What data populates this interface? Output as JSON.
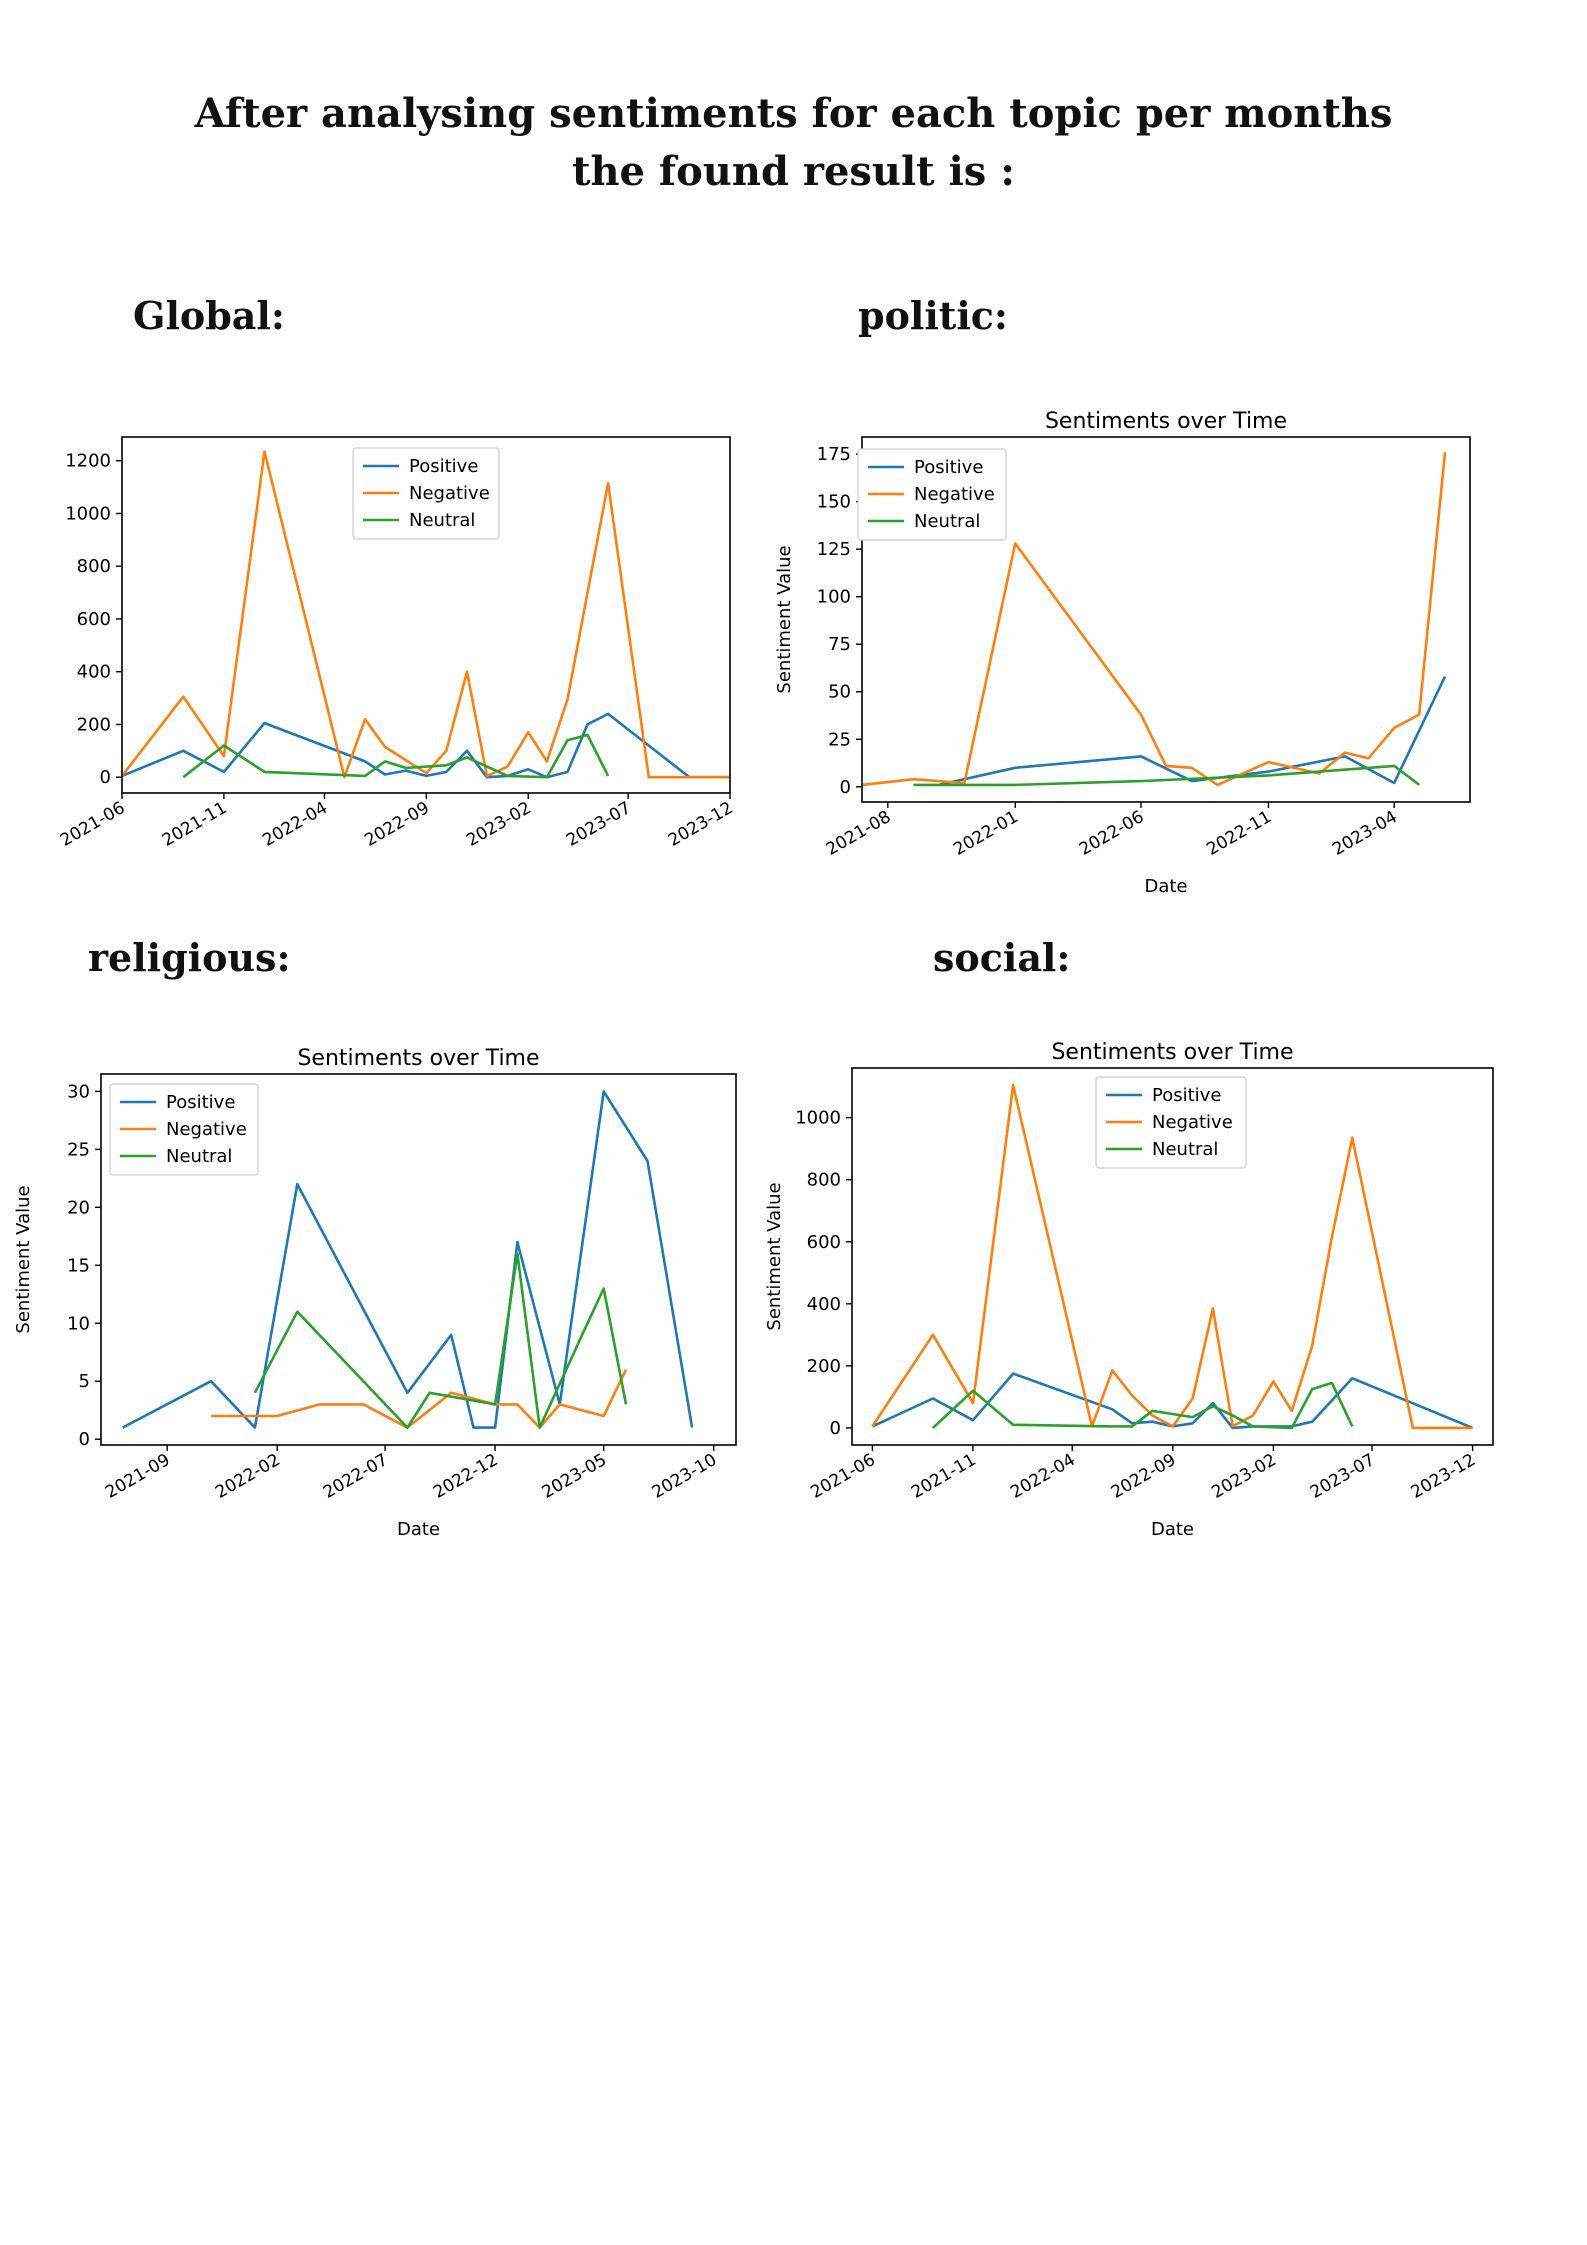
{
  "page": {
    "title_line1": "After analysing sentiments for each topic per months",
    "title_line2": "the found result is :"
  },
  "sections": {
    "global": "Global:",
    "politic": "politic:",
    "religious": "religious:",
    "social": "social:"
  },
  "colors": {
    "positive": "#1f77b4",
    "negative": "#ff7f0e",
    "neutral": "#2ca02c"
  },
  "chart_data": [
    {
      "type": "line",
      "id": "global",
      "title": "",
      "xlabel": "",
      "ylabel": "",
      "x_ticks": [
        "2021-06",
        "2021-11",
        "2022-04",
        "2022-09",
        "2023-02",
        "2023-07",
        "2023-12"
      ],
      "xlim": [
        "2021-06-01",
        "2023-12-01"
      ],
      "y_ticks": [
        0,
        200,
        400,
        600,
        800,
        1000,
        1200
      ],
      "ylim": [
        -60,
        1290
      ],
      "legend": "top-center",
      "series": [
        {
          "name": "Positive",
          "x": [
            "2021-06-01",
            "2021-09-01",
            "2021-11-01",
            "2022-01-01",
            "2022-06-01",
            "2022-07-01",
            "2022-08-01",
            "2022-09-01",
            "2022-10-01",
            "2022-11-01",
            "2022-12-01",
            "2023-01-01",
            "2023-02-01",
            "2023-03-01",
            "2023-04-01",
            "2023-05-01",
            "2023-06-01",
            "2023-10-01",
            "2023-12-01"
          ],
          "y": [
            5,
            100,
            20,
            205,
            60,
            10,
            25,
            5,
            20,
            100,
            0,
            5,
            30,
            0,
            20,
            200,
            240,
            0,
            0
          ]
        },
        {
          "name": "Negative",
          "x": [
            "2021-06-01",
            "2021-09-01",
            "2021-11-01",
            "2022-01-01",
            "2022-05-01",
            "2022-06-01",
            "2022-07-01",
            "2022-09-01",
            "2022-10-01",
            "2022-11-01",
            "2022-12-01",
            "2023-01-01",
            "2023-02-01",
            "2023-03-01",
            "2023-04-01",
            "2023-06-01",
            "2023-08-01",
            "2023-12-01"
          ],
          "y": [
            5,
            305,
            80,
            1235,
            0,
            220,
            115,
            15,
            100,
            400,
            5,
            40,
            170,
            60,
            295,
            1115,
            0,
            0
          ]
        },
        {
          "name": "Neutral",
          "x": [
            "2021-09-01",
            "2021-11-01",
            "2022-01-01",
            "2022-06-01",
            "2022-07-01",
            "2022-08-01",
            "2022-10-01",
            "2022-11-01",
            "2022-12-01",
            "2023-01-01",
            "2023-03-01",
            "2023-04-01",
            "2023-05-01",
            "2023-06-01"
          ],
          "y": [
            0,
            120,
            20,
            5,
            60,
            35,
            45,
            75,
            40,
            5,
            0,
            140,
            160,
            5
          ]
        }
      ]
    },
    {
      "type": "line",
      "id": "politic",
      "title": "Sentiments over Time",
      "xlabel": "Date",
      "ylabel": "Sentiment Value",
      "x_ticks": [
        "2021-08",
        "2022-01",
        "2022-06",
        "2022-11",
        "2023-04"
      ],
      "xlim": [
        "2021-07-01",
        "2023-07-01"
      ],
      "y_ticks": [
        0,
        25,
        50,
        75,
        100,
        125,
        150,
        175
      ],
      "ylim": [
        -8,
        184
      ],
      "legend": "top-left",
      "series": [
        {
          "name": "Positive",
          "x": [
            "2021-10-01",
            "2022-01-01",
            "2022-06-01",
            "2022-08-01",
            "2022-11-01",
            "2023-02-01",
            "2023-04-01",
            "2023-06-01"
          ],
          "y": [
            1,
            10,
            16,
            3,
            8,
            16,
            2,
            58
          ]
        },
        {
          "name": "Negative",
          "x": [
            "2021-07-01",
            "2021-09-01",
            "2021-11-01",
            "2022-01-01",
            "2022-06-01",
            "2022-07-01",
            "2022-08-01",
            "2022-09-01",
            "2022-11-01",
            "2023-01-01",
            "2023-02-01",
            "2023-03-01",
            "2023-04-01",
            "2023-05-01",
            "2023-06-01"
          ],
          "y": [
            1,
            4,
            2,
            128,
            38,
            11,
            10,
            1,
            13,
            7,
            18,
            15,
            31,
            38,
            176
          ]
        },
        {
          "name": "Neutral",
          "x": [
            "2021-09-01",
            "2022-01-01",
            "2022-06-01",
            "2022-11-01",
            "2023-04-01",
            "2023-05-01"
          ],
          "y": [
            1,
            1,
            3,
            6,
            11,
            1
          ]
        }
      ]
    },
    {
      "type": "line",
      "id": "religious",
      "title": "Sentiments over Time",
      "xlabel": "Date",
      "ylabel": "Sentiment Value",
      "x_ticks": [
        "2021-09",
        "2022-02",
        "2022-07",
        "2022-12",
        "2023-05",
        "2023-10"
      ],
      "xlim": [
        "2021-06-01",
        "2023-11-01"
      ],
      "y_ticks": [
        0,
        5,
        10,
        15,
        20,
        25,
        30
      ],
      "ylim": [
        -0.5,
        31.5
      ],
      "legend": "top-left",
      "series": [
        {
          "name": "Positive",
          "x": [
            "2021-07-01",
            "2021-11-01",
            "2022-01-01",
            "2022-03-01",
            "2022-08-01",
            "2022-10-01",
            "2022-11-01",
            "2022-12-01",
            "2023-01-01",
            "2023-03-01",
            "2023-05-01",
            "2023-07-01",
            "2023-09-01"
          ],
          "y": [
            1,
            5,
            1,
            22,
            4,
            9,
            1,
            1,
            17,
            3,
            30,
            24,
            1
          ]
        },
        {
          "name": "Negative",
          "x": [
            "2021-11-01",
            "2021-12-01",
            "2022-02-01",
            "2022-04-01",
            "2022-06-01",
            "2022-08-01",
            "2022-10-01",
            "2022-12-01",
            "2023-01-01",
            "2023-02-01",
            "2023-03-01",
            "2023-05-01",
            "2023-06-01"
          ],
          "y": [
            2,
            2,
            2,
            3,
            3,
            1,
            4,
            3,
            3,
            1,
            3,
            2,
            6
          ]
        },
        {
          "name": "Neutral",
          "x": [
            "2022-01-01",
            "2022-03-01",
            "2022-08-01",
            "2022-09-01",
            "2022-12-01",
            "2023-01-01",
            "2023-02-01",
            "2023-04-01",
            "2023-05-01",
            "2023-06-01"
          ],
          "y": [
            4,
            11,
            1,
            4,
            3,
            16,
            1,
            9,
            13,
            3
          ]
        }
      ]
    },
    {
      "type": "line",
      "id": "social",
      "title": "Sentiments over Time",
      "xlabel": "Date",
      "ylabel": "Sentiment Value",
      "x_ticks": [
        "2021-06",
        "2021-11",
        "2022-04",
        "2022-09",
        "2023-02",
        "2023-07",
        "2023-12"
      ],
      "xlim": [
        "2021-05-01",
        "2024-01-01"
      ],
      "y_ticks": [
        0,
        200,
        400,
        600,
        800,
        1000
      ],
      "ylim": [
        -55,
        1160
      ],
      "legend": "top-center",
      "series": [
        {
          "name": "Positive",
          "x": [
            "2021-06-01",
            "2021-09-01",
            "2021-11-01",
            "2022-01-01",
            "2022-06-01",
            "2022-07-01",
            "2022-08-01",
            "2022-09-01",
            "2022-10-01",
            "2022-11-01",
            "2022-12-01",
            "2023-01-01",
            "2023-03-01",
            "2023-04-01",
            "2023-06-01",
            "2023-12-01"
          ],
          "y": [
            5,
            95,
            25,
            175,
            60,
            15,
            20,
            5,
            15,
            80,
            0,
            5,
            5,
            20,
            160,
            0
          ]
        },
        {
          "name": "Negative",
          "x": [
            "2021-06-01",
            "2021-09-01",
            "2021-11-01",
            "2022-01-01",
            "2022-05-01",
            "2022-06-01",
            "2022-07-01",
            "2022-08-01",
            "2022-09-01",
            "2022-10-01",
            "2022-11-01",
            "2022-12-01",
            "2023-01-01",
            "2023-02-01",
            "2023-03-01",
            "2023-04-01",
            "2023-05-01",
            "2023-06-01",
            "2023-09-01",
            "2023-12-01"
          ],
          "y": [
            5,
            300,
            80,
            1105,
            5,
            185,
            105,
            40,
            5,
            95,
            385,
            5,
            40,
            150,
            55,
            265,
            615,
            935,
            0,
            0
          ]
        },
        {
          "name": "Neutral",
          "x": [
            "2021-09-01",
            "2021-11-01",
            "2022-01-01",
            "2022-06-01",
            "2022-07-01",
            "2022-08-01",
            "2022-10-01",
            "2022-11-01",
            "2022-12-01",
            "2023-01-01",
            "2023-03-01",
            "2023-04-01",
            "2023-05-01",
            "2023-06-01"
          ],
          "y": [
            0,
            120,
            10,
            5,
            5,
            55,
            35,
            70,
            40,
            5,
            0,
            125,
            145,
            5
          ]
        }
      ]
    }
  ]
}
